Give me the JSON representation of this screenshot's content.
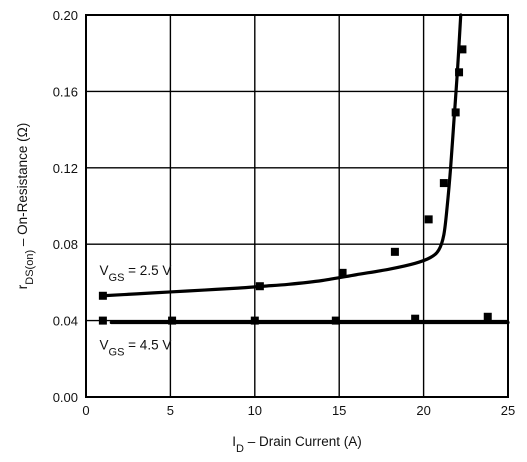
{
  "chart_data": {
    "type": "line",
    "title": "",
    "xlabel": {
      "main": "I",
      "sub": "D",
      "rest": " – Drain Current (A)"
    },
    "ylabel": {
      "main": "r",
      "sub": "DS(on)",
      "rest": " – On-Resistance (Ω)"
    },
    "xlim": [
      0,
      25
    ],
    "ylim": [
      0.0,
      0.2
    ],
    "xticks": [
      0,
      5,
      10,
      15,
      20,
      25
    ],
    "xtick_labels": [
      "0",
      "5",
      "10",
      "15",
      "20",
      "25"
    ],
    "yticks": [
      0.0,
      0.04,
      0.08,
      0.12,
      0.16,
      0.2
    ],
    "ytick_labels": [
      "0.00",
      "0.04",
      "0.08",
      "0.12",
      "0.16",
      "0.20"
    ],
    "grid": true,
    "series": [
      {
        "curve": [
          [
            1.0,
            0.053
          ],
          [
            3.0,
            0.054
          ],
          [
            5.0,
            0.055
          ],
          [
            7.0,
            0.056
          ],
          [
            9.0,
            0.057
          ],
          [
            10.5,
            0.058
          ],
          [
            12.0,
            0.059
          ],
          [
            14.0,
            0.061
          ],
          [
            16.0,
            0.064
          ],
          [
            18.0,
            0.067
          ],
          [
            19.5,
            0.07
          ],
          [
            20.4,
            0.073
          ],
          [
            20.9,
            0.077
          ],
          [
            21.2,
            0.085
          ],
          [
            21.4,
            0.1
          ],
          [
            21.6,
            0.12
          ],
          [
            21.8,
            0.145
          ],
          [
            22.0,
            0.17
          ],
          [
            22.2,
            0.2
          ]
        ],
        "markers": [
          [
            1.0,
            0.053
          ],
          [
            10.3,
            0.058
          ],
          [
            15.2,
            0.065
          ],
          [
            18.3,
            0.076
          ],
          [
            20.3,
            0.093
          ],
          [
            21.2,
            0.112
          ],
          [
            21.9,
            0.149
          ],
          [
            22.1,
            0.17
          ],
          [
            22.3,
            0.182
          ]
        ],
        "annotation": {
          "main": "V",
          "sub": "GS",
          "rest": " = 2.5 V",
          "at": [
            0.8,
            0.064
          ]
        }
      },
      {
        "curve": [
          [
            1.5,
            0.039
          ],
          [
            25.0,
            0.039
          ]
        ],
        "markers": [
          [
            1.0,
            0.04
          ],
          [
            5.1,
            0.04
          ],
          [
            10.0,
            0.04
          ],
          [
            14.8,
            0.04
          ],
          [
            19.5,
            0.041
          ],
          [
            23.8,
            0.042
          ]
        ],
        "annotation": {
          "main": "V",
          "sub": "GS",
          "rest": " = 4.5 V",
          "at": [
            0.8,
            0.025
          ]
        }
      }
    ],
    "colors": {
      "line": "#000000",
      "grid": "#000000",
      "marker": "#000000"
    }
  }
}
